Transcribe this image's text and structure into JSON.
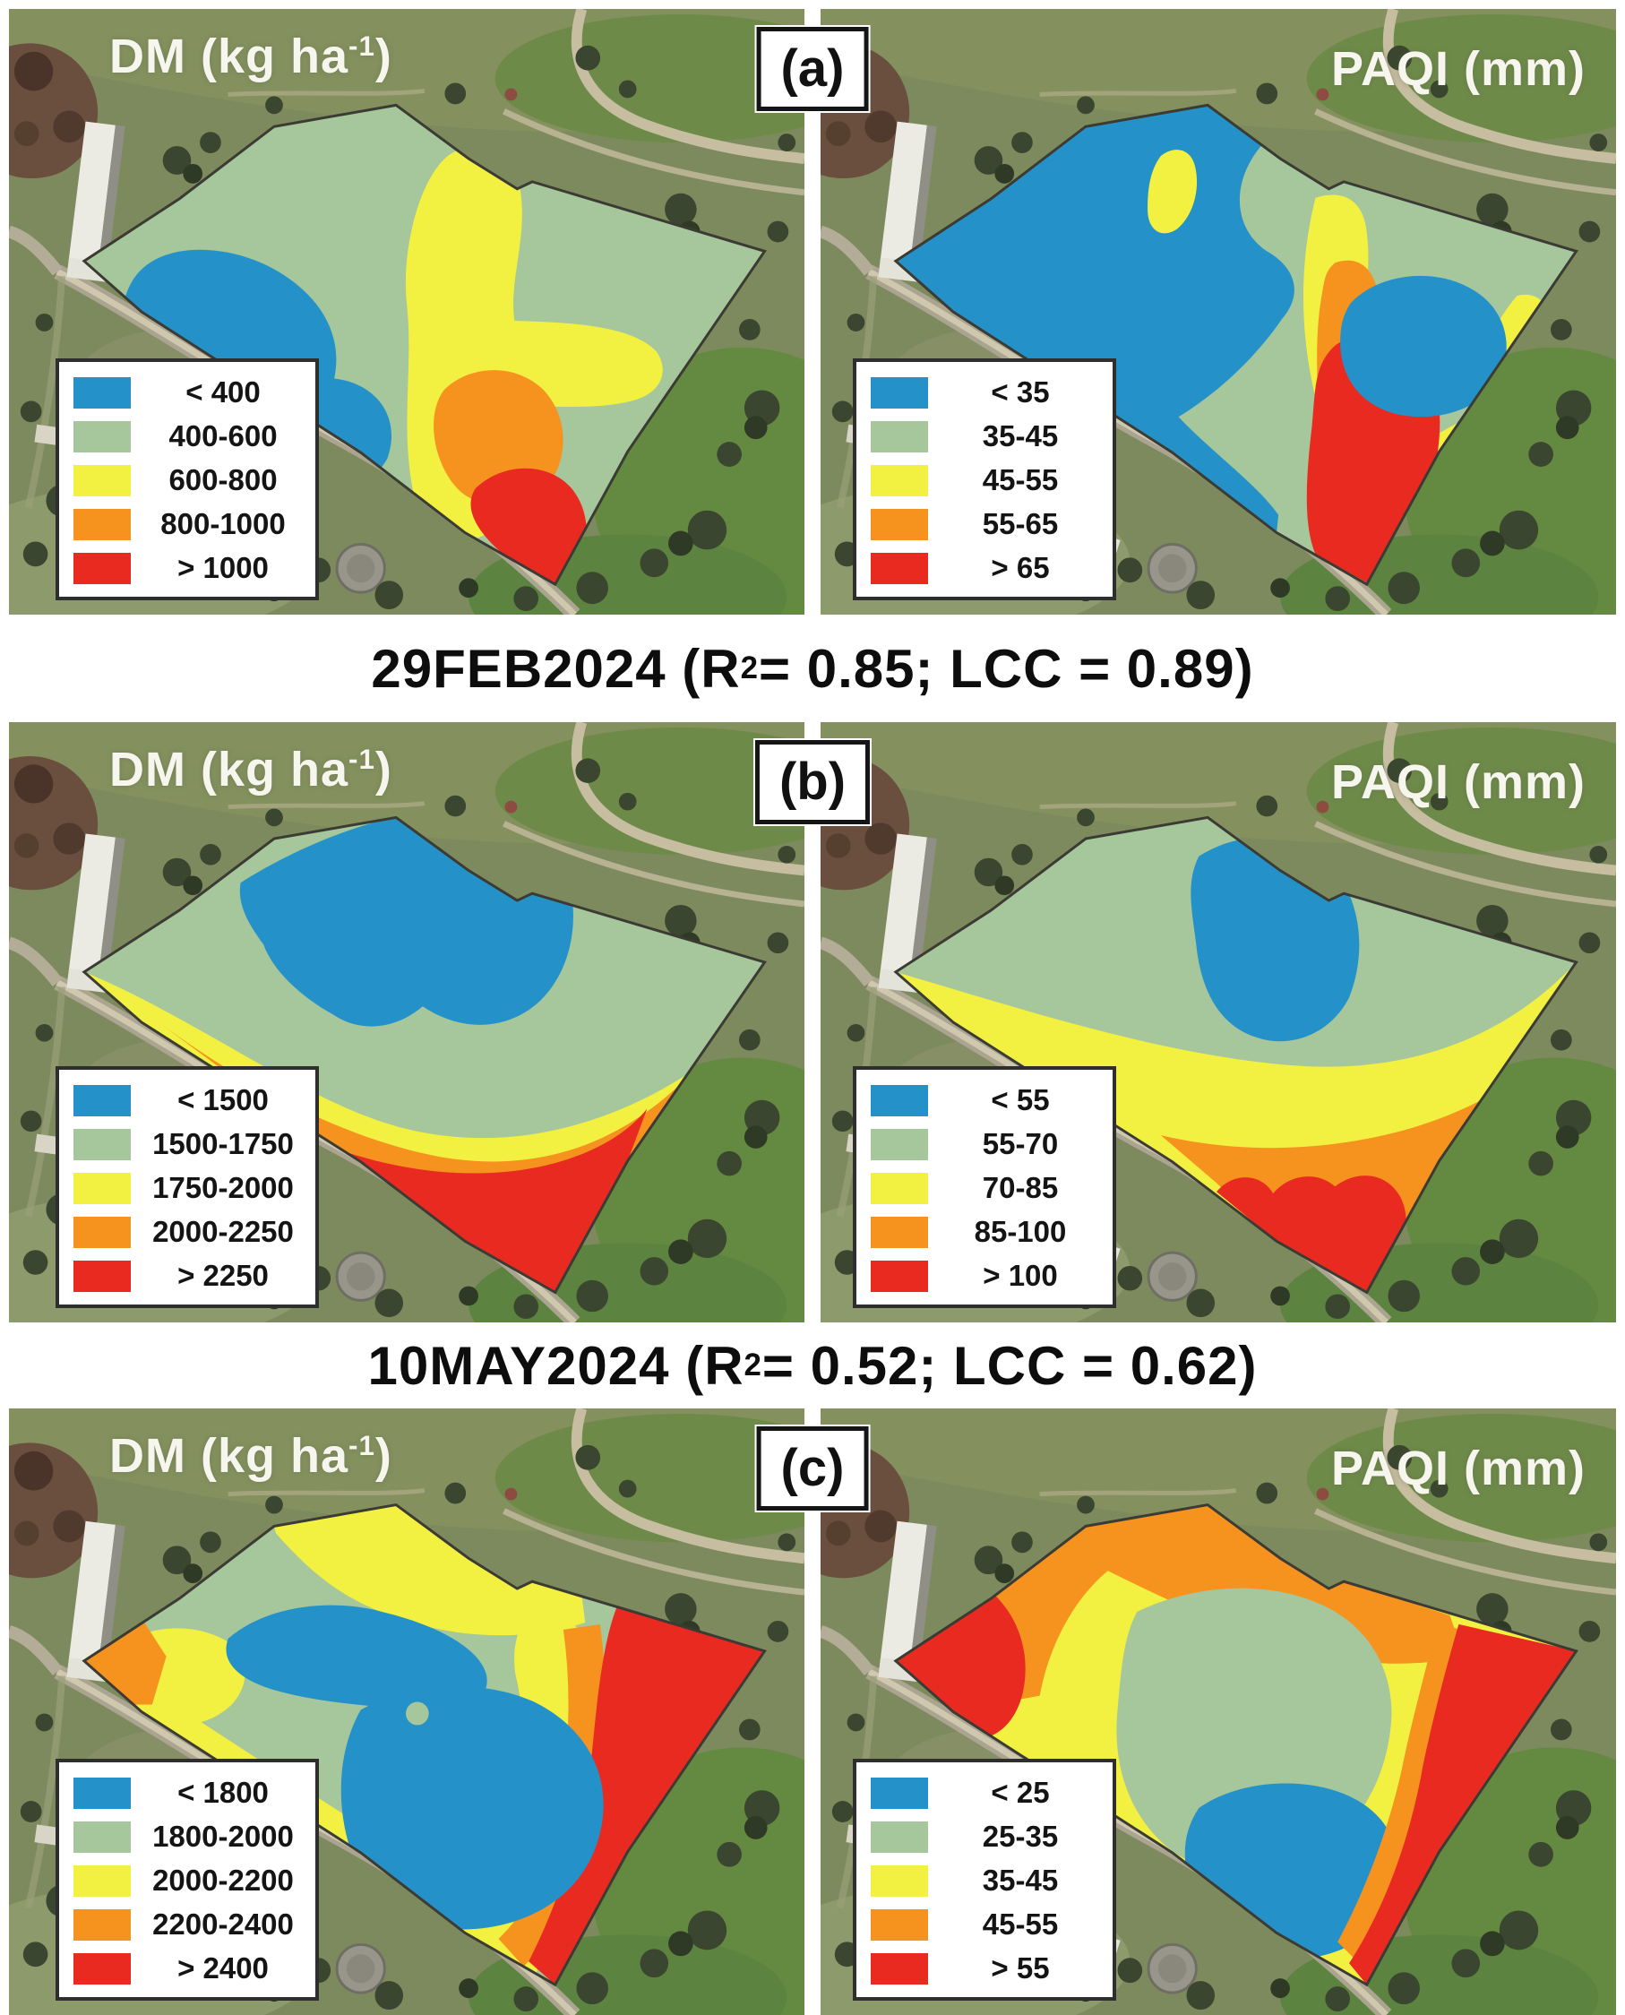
{
  "figure": {
    "colors": {
      "blue": "#2492C8",
      "green": "#A6C69C",
      "yellow": "#F2F141",
      "orange": "#F6921E",
      "red": "#E92A21"
    },
    "captions": [
      {
        "pre": "29FEB2024 (R",
        "sup": "2",
        "post": " = 0.85; LCC = 0.89)"
      },
      {
        "pre": "10MAY2024 (R",
        "sup": "2",
        "post": " = 0.52; LCC = 0.62)"
      }
    ],
    "panels": [
      {
        "label": "(a)",
        "maps": [
          {
            "title": {
              "pre": "DM (kg ha",
              "sup": "-1",
              "post": ")"
            },
            "legend": [
              {
                "color": "#2492C8",
                "label": "< 400"
              },
              {
                "color": "#A6C69C",
                "label": "400-600"
              },
              {
                "color": "#F2F141",
                "label": "600-800"
              },
              {
                "color": "#F6921E",
                "label": "800-1000"
              },
              {
                "color": "#E92A21",
                "label": "> 1000"
              }
            ]
          },
          {
            "title": {
              "pre": "PAQI (mm)",
              "sup": "",
              "post": ""
            },
            "legend": [
              {
                "color": "#2492C8",
                "label": "< 35"
              },
              {
                "color": "#A6C69C",
                "label": "35-45"
              },
              {
                "color": "#F2F141",
                "label": "45-55"
              },
              {
                "color": "#F6921E",
                "label": "55-65"
              },
              {
                "color": "#E92A21",
                "label": "> 65"
              }
            ]
          }
        ]
      },
      {
        "label": "(b)",
        "maps": [
          {
            "title": {
              "pre": "DM (kg ha",
              "sup": "-1",
              "post": ")"
            },
            "legend": [
              {
                "color": "#2492C8",
                "label": "< 1500"
              },
              {
                "color": "#A6C69C",
                "label": "1500-1750"
              },
              {
                "color": "#F2F141",
                "label": "1750-2000"
              },
              {
                "color": "#F6921E",
                "label": "2000-2250"
              },
              {
                "color": "#E92A21",
                "label": "> 2250"
              }
            ]
          },
          {
            "title": {
              "pre": "PAQI (mm)",
              "sup": "",
              "post": ""
            },
            "legend": [
              {
                "color": "#2492C8",
                "label": "< 55"
              },
              {
                "color": "#A6C69C",
                "label": "55-70"
              },
              {
                "color": "#F2F141",
                "label": "70-85"
              },
              {
                "color": "#F6921E",
                "label": "85-100"
              },
              {
                "color": "#E92A21",
                "label": "> 100"
              }
            ]
          }
        ]
      },
      {
        "label": "(c)",
        "maps": [
          {
            "title": {
              "pre": "DM (kg ha",
              "sup": "-1",
              "post": ")"
            },
            "legend": [
              {
                "color": "#2492C8",
                "label": "< 1800"
              },
              {
                "color": "#A6C69C",
                "label": "1800-2000"
              },
              {
                "color": "#F2F141",
                "label": "2000-2200"
              },
              {
                "color": "#F6921E",
                "label": "2200-2400"
              },
              {
                "color": "#E92A21",
                "label": "> 2400"
              }
            ]
          },
          {
            "title": {
              "pre": "PAQI (mm)",
              "sup": "",
              "post": ""
            },
            "legend": [
              {
                "color": "#2492C8",
                "label": "< 25"
              },
              {
                "color": "#A6C69C",
                "label": "25-35"
              },
              {
                "color": "#F2F141",
                "label": "35-45"
              },
              {
                "color": "#F6921E",
                "label": "45-55"
              },
              {
                "color": "#E92A21",
                "label": "> 55"
              }
            ]
          }
        ]
      }
    ]
  }
}
